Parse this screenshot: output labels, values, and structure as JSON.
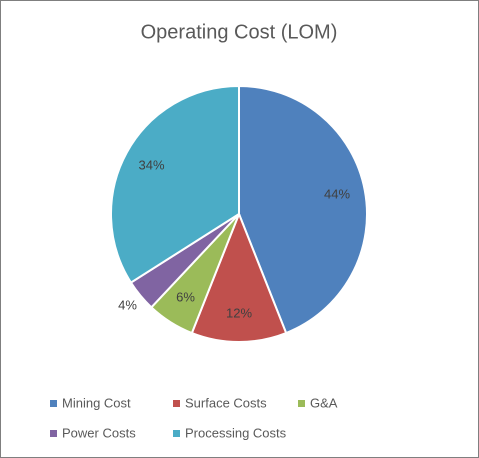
{
  "chart_data": {
    "type": "pie",
    "title": "Operating Cost (LOM)",
    "categories": [
      "Mining Cost",
      "Surface Costs",
      "G&A",
      "Power Costs",
      "Processing Costs"
    ],
    "values": [
      44,
      12,
      6,
      4,
      34
    ],
    "value_labels": [
      "44%",
      "12%",
      "6%",
      "4%",
      "34%"
    ],
    "colors": [
      "#4f81bd",
      "#c0504d",
      "#9bbb59",
      "#8064a2",
      "#4bacc6"
    ],
    "legend": "bottom"
  }
}
